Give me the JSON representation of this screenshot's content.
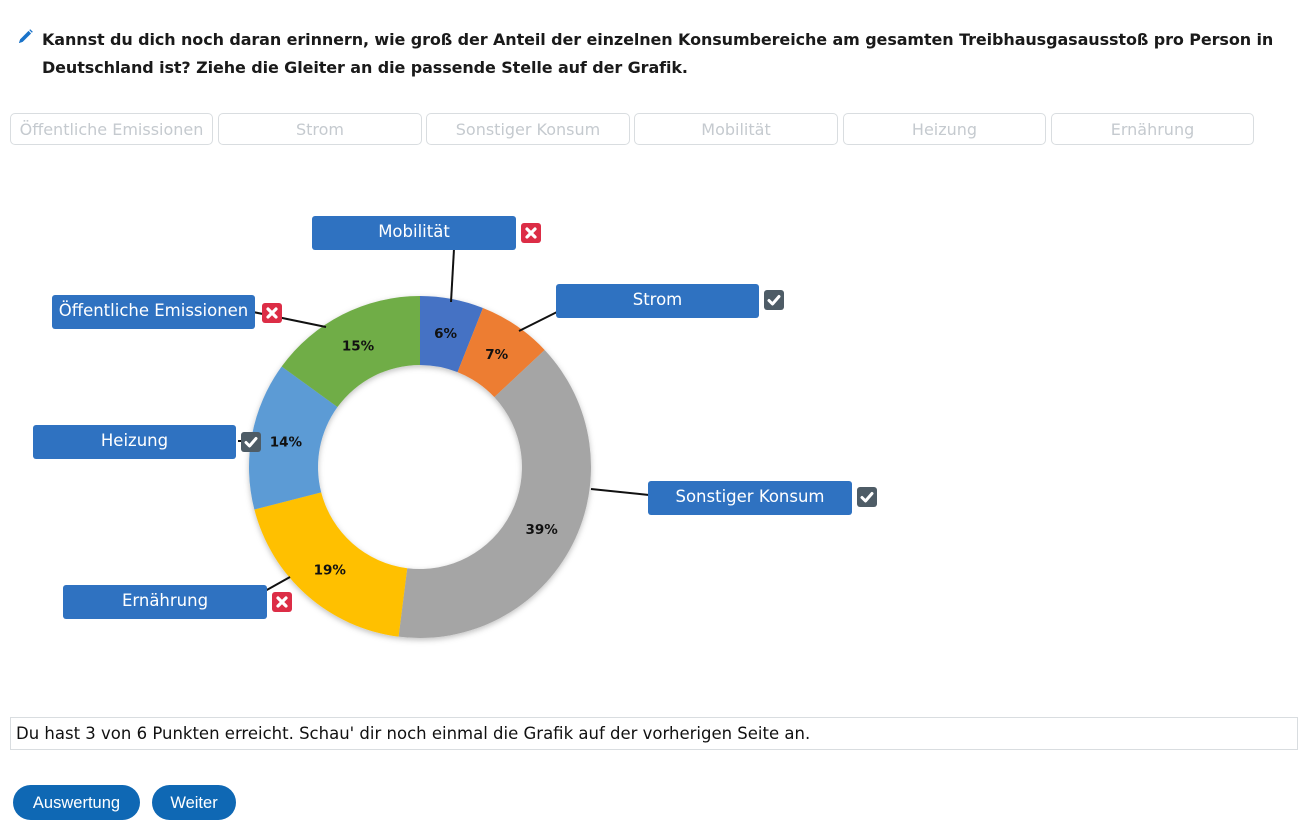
{
  "question": {
    "icon": "pencil-icon",
    "text": "Kannst du dich noch daran erinnern, wie groß der Anteil der einzelnen Konsumbereiche am gesamten Treibhausgasausstoß pro Person in Deutschland ist? Ziehe die Gleiter an die passende Stelle auf der Grafik."
  },
  "slots": [
    {
      "label": "Öffentliche Emissionen"
    },
    {
      "label": "Strom"
    },
    {
      "label": "Sonstiger Konsum"
    },
    {
      "label": "Mobilität"
    },
    {
      "label": "Heizung"
    },
    {
      "label": "Ernährung"
    }
  ],
  "placed_labels": [
    {
      "label": "Mobilität",
      "status": "wrong"
    },
    {
      "label": "Strom",
      "status": "correct"
    },
    {
      "label": "Öffentliche Emissionen",
      "status": "wrong"
    },
    {
      "label": "Heizung",
      "status": "correct"
    },
    {
      "label": "Sonstiger Konsum",
      "status": "correct"
    },
    {
      "label": "Ernährung",
      "status": "wrong"
    }
  ],
  "chart_data": {
    "type": "pie",
    "subtype": "donut",
    "title": "",
    "start_angle_deg": 0,
    "direction": "clockwise",
    "slices": [
      {
        "value": 6,
        "label": "6%",
        "color": "#4472c4"
      },
      {
        "value": 7,
        "label": "7%",
        "color": "#ed7d31"
      },
      {
        "value": 39,
        "label": "39%",
        "color": "#a5a5a5"
      },
      {
        "value": 19,
        "label": "19%",
        "color": "#ffc000"
      },
      {
        "value": 14,
        "label": "14%",
        "color": "#5b9bd5"
      },
      {
        "value": 15,
        "label": "15%",
        "color": "#70ad47"
      }
    ],
    "values": [
      6,
      7,
      39,
      19,
      14,
      15
    ],
    "categories": [
      "6%",
      "7%",
      "39%",
      "19%",
      "14%",
      "15%"
    ]
  },
  "feedback": {
    "text": "Du hast 3 von 6 Punkten erreicht. Schau' dir noch einmal die Grafik auf der vorherigen Seite an."
  },
  "buttons": {
    "evaluate": "Auswertung",
    "next": "Weiter"
  },
  "colors": {
    "label_bg": "#2f72c1",
    "wrong": "#dc2d46",
    "correct": "#4e5c66",
    "button": "#0f68b4"
  }
}
